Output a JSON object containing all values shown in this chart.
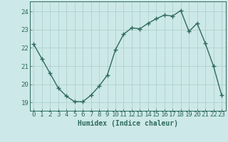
{
  "x": [
    0,
    1,
    2,
    3,
    4,
    5,
    6,
    7,
    8,
    9,
    10,
    11,
    12,
    13,
    14,
    15,
    16,
    17,
    18,
    19,
    20,
    21,
    22,
    23
  ],
  "y": [
    22.2,
    21.4,
    20.6,
    19.8,
    19.35,
    19.05,
    19.05,
    19.4,
    19.9,
    20.5,
    21.9,
    22.75,
    23.1,
    23.05,
    23.35,
    23.6,
    23.8,
    23.75,
    24.05,
    22.9,
    23.35,
    22.25,
    21.0,
    19.4
  ],
  "line_color": "#2e6b5e",
  "bg_color": "#cde8e8",
  "grid_color": "#a8cccc",
  "xlabel": "Humidex (Indice chaleur)",
  "ylabel_ticks": [
    19,
    20,
    21,
    22,
    23,
    24
  ],
  "xlim": [
    -0.5,
    23.5
  ],
  "ylim": [
    18.55,
    24.55
  ],
  "marker": "+",
  "marker_size": 4,
  "line_width": 1.0,
  "xlabel_fontsize": 7,
  "tick_fontsize": 6.5,
  "xticks": [
    0,
    1,
    2,
    3,
    4,
    5,
    6,
    7,
    8,
    9,
    10,
    11,
    12,
    13,
    14,
    15,
    16,
    17,
    18,
    19,
    20,
    21,
    22,
    23
  ]
}
